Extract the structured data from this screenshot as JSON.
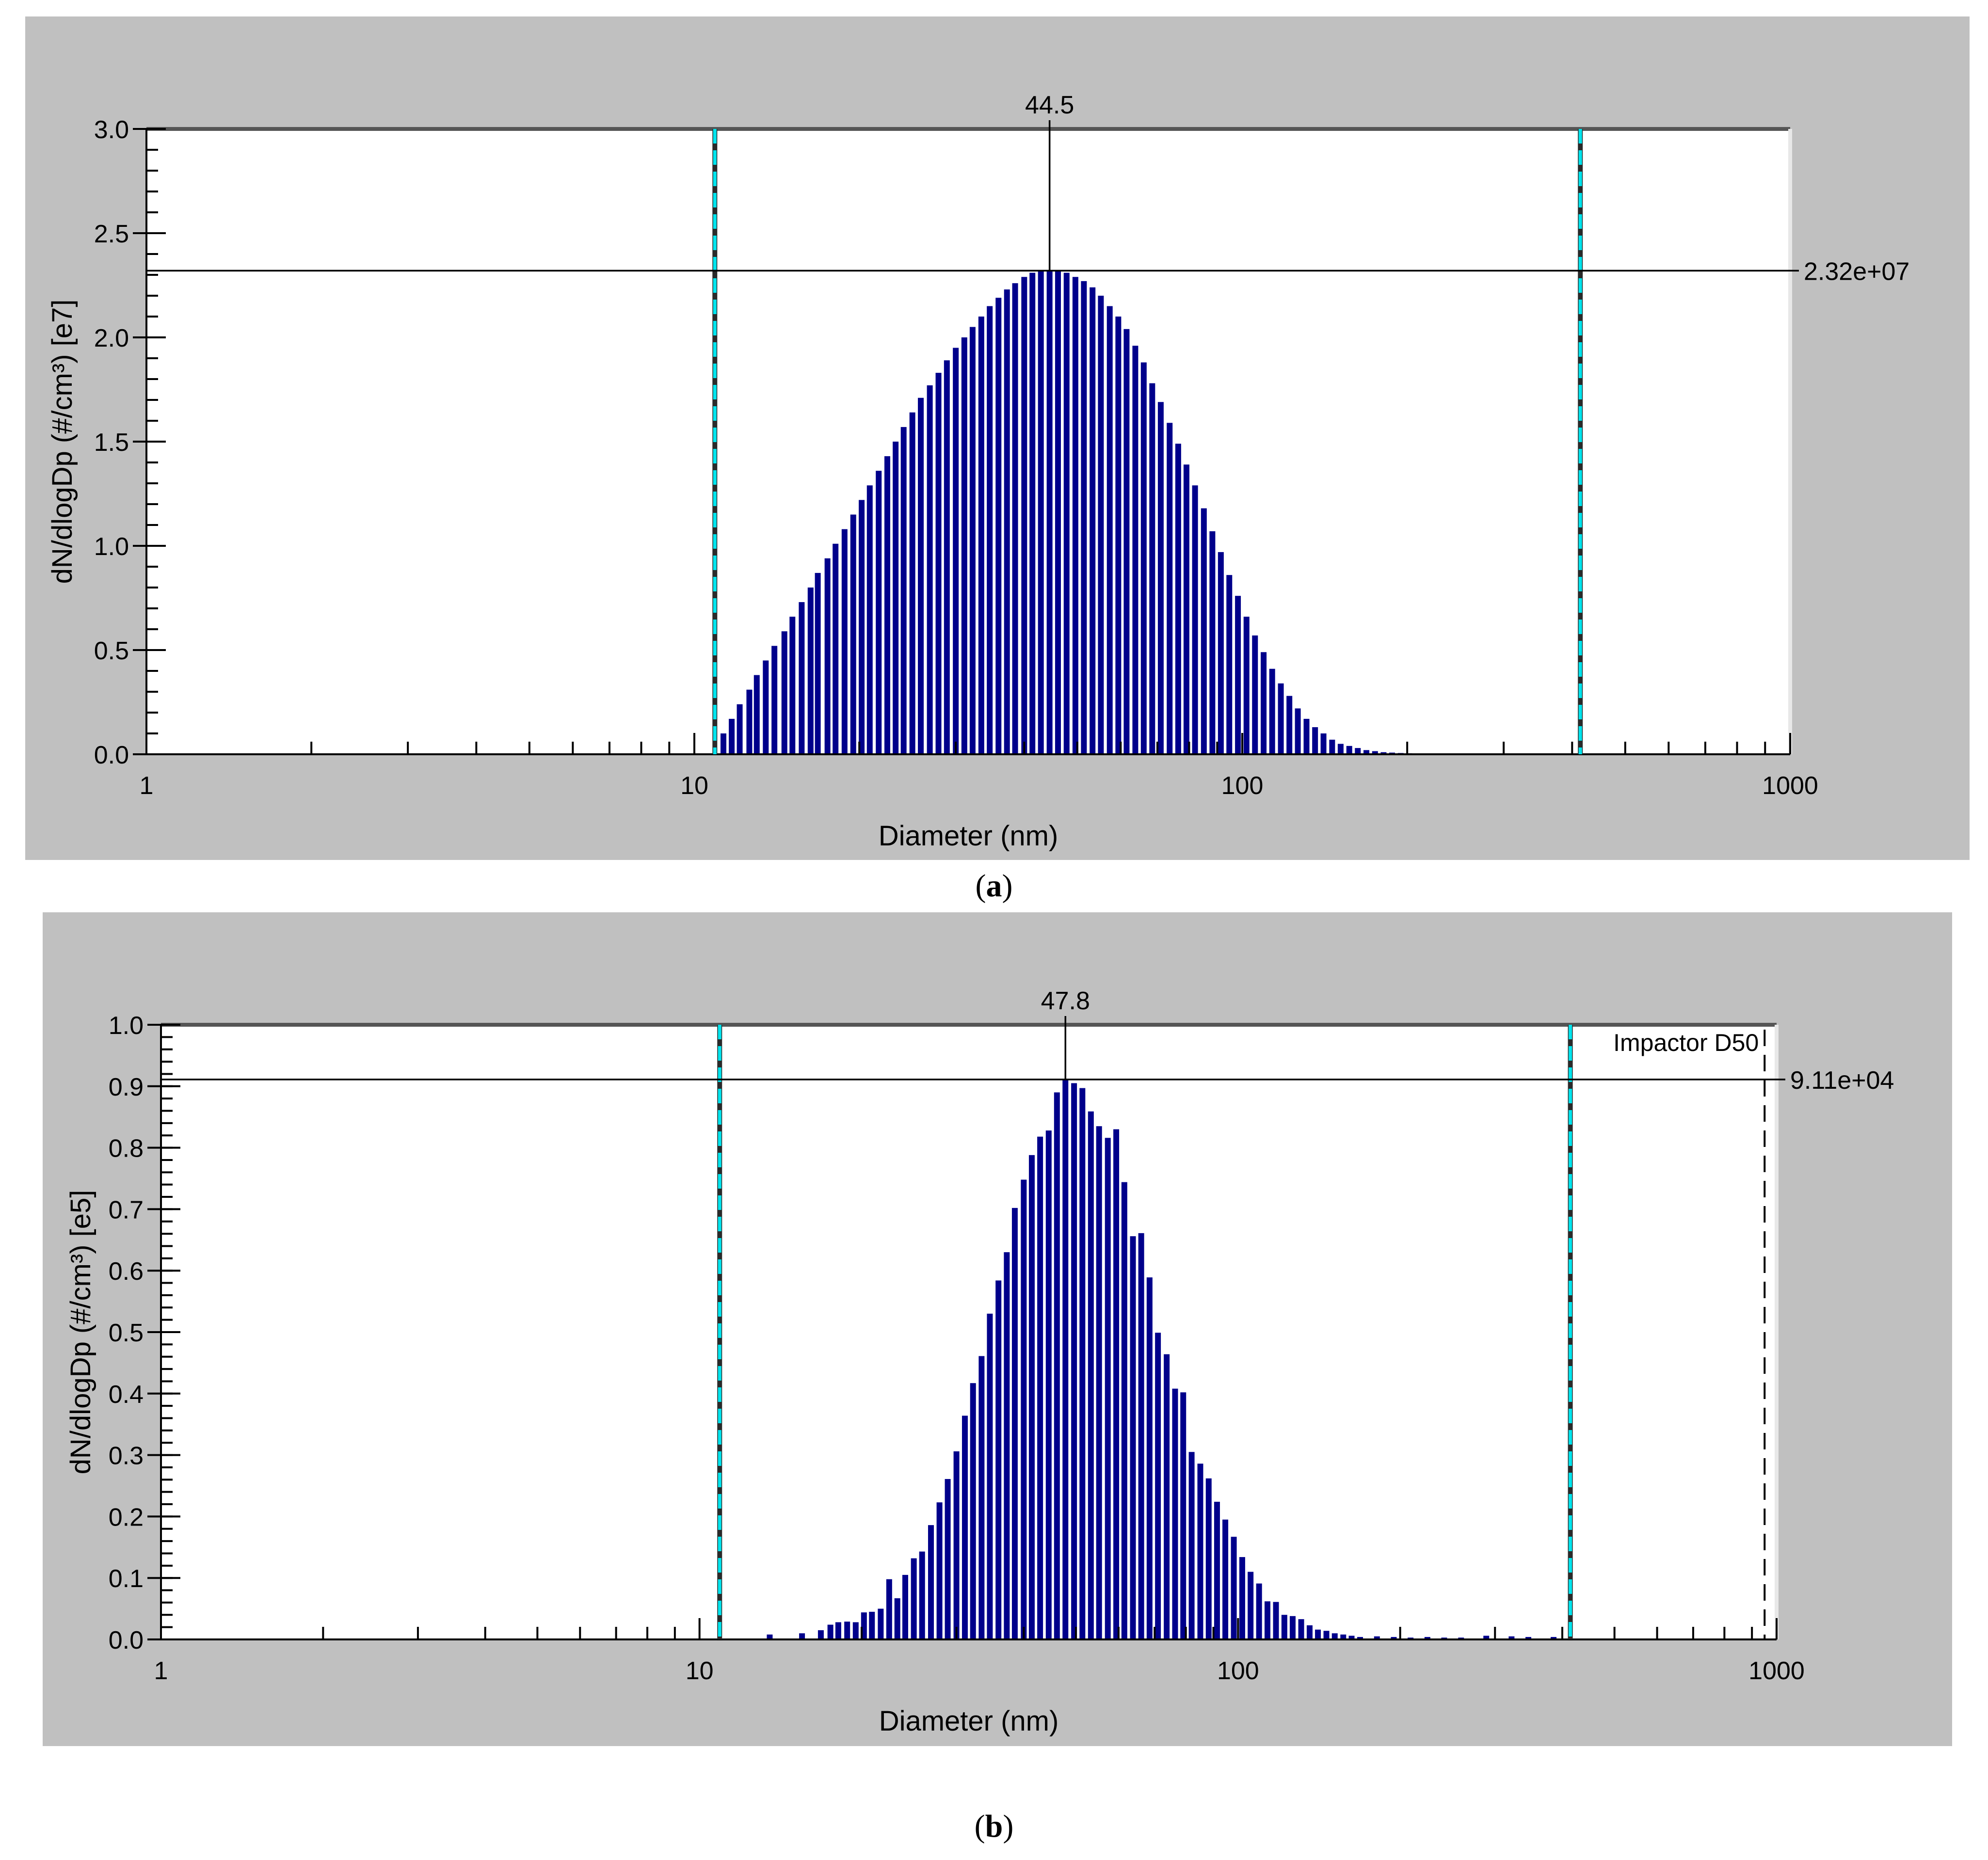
{
  "panels": [
    {
      "label": "a"
    },
    {
      "label": "b"
    }
  ],
  "chart_data": [
    {
      "type": "bar",
      "xlabel": "Diameter (nm)",
      "ylabel": "dN/dlogDp (#/cm³) [e7]",
      "xscale": "log",
      "xlim": [
        1,
        1000
      ],
      "ylim": [
        0,
        3.0
      ],
      "xticks": [
        "1",
        "10",
        "100",
        "1000"
      ],
      "yticks": [
        "0.0",
        "0.5",
        "1.0",
        "1.5",
        "2.0",
        "2.5",
        "3.0"
      ],
      "cursor": {
        "x": 44.5,
        "x_label": "44.5",
        "y": 2.32,
        "y_label": "2.32e+07"
      },
      "bounds": [
        10.9,
        414
      ],
      "bar_color": "#00008b",
      "bound_color": "#00e5ee",
      "x": [
        11.3,
        11.7,
        12.1,
        12.6,
        13.0,
        13.5,
        14.0,
        14.6,
        15.1,
        15.7,
        16.3,
        16.8,
        17.5,
        18.1,
        18.8,
        19.5,
        20.2,
        20.9,
        21.7,
        22.5,
        23.3,
        24.1,
        25.0,
        25.9,
        26.9,
        27.9,
        28.9,
        30.0,
        31.1,
        32.2,
        33.4,
        34.6,
        35.9,
        37.2,
        38.5,
        40.0,
        41.4,
        42.9,
        44.5,
        46.1,
        47.8,
        49.6,
        51.4,
        53.3,
        55.2,
        57.3,
        59.4,
        61.5,
        63.8,
        66.1,
        68.5,
        71.0,
        73.7,
        76.4,
        79.1,
        82.0,
        85.1,
        88.2,
        91.4,
        94.7,
        98.2,
        101.8,
        105.5,
        109.4,
        113.4,
        117.6,
        121.9,
        126.3,
        131.0,
        135.8,
        140.7,
        145.9,
        151.2,
        156.8,
        162.5,
        168.5,
        174.7,
        181.1,
        187.7,
        194.6,
        201.7,
        209.1,
        216.7,
        224.7,
        232.9,
        241.4,
        250.3,
        259.5,
        269.0,
        278.8,
        289.0,
        299.6,
        310.6,
        322.0,
        333.8,
        346.0,
        358.7,
        371.8,
        385.4,
        399.5
      ],
      "values": [
        0.1,
        0.17,
        0.24,
        0.31,
        0.38,
        0.45,
        0.52,
        0.59,
        0.66,
        0.73,
        0.8,
        0.87,
        0.94,
        1.01,
        1.08,
        1.15,
        1.22,
        1.29,
        1.36,
        1.43,
        1.5,
        1.57,
        1.64,
        1.71,
        1.77,
        1.83,
        1.89,
        1.95,
        2.0,
        2.05,
        2.1,
        2.15,
        2.19,
        2.23,
        2.26,
        2.29,
        2.31,
        2.32,
        2.32,
        2.32,
        2.31,
        2.29,
        2.27,
        2.24,
        2.2,
        2.15,
        2.1,
        2.04,
        1.96,
        1.88,
        1.78,
        1.69,
        1.59,
        1.49,
        1.39,
        1.29,
        1.18,
        1.07,
        0.97,
        0.86,
        0.76,
        0.66,
        0.57,
        0.49,
        0.41,
        0.34,
        0.28,
        0.22,
        0.17,
        0.13,
        0.1,
        0.07,
        0.05,
        0.04,
        0.03,
        0.02,
        0.015,
        0.01,
        0.008,
        0.006,
        0.005,
        0.004,
        0.003,
        0.003,
        0.002,
        0.002,
        0.002,
        0.002,
        0.002,
        0.002,
        0.002,
        0.002,
        0.002,
        0.002,
        0.002,
        0.002,
        0.002,
        0.002,
        0.002,
        0.002
      ]
    },
    {
      "type": "bar",
      "xlabel": "Diameter (nm)",
      "ylabel": "dN/dlogDp (#/cm³) [e5]",
      "xscale": "log",
      "xlim": [
        1,
        1000
      ],
      "ylim": [
        0,
        1.0
      ],
      "xticks": [
        "1",
        "10",
        "100",
        "1000"
      ],
      "yticks": [
        "0.0",
        "0.1",
        "0.2",
        "0.3",
        "0.4",
        "0.5",
        "0.6",
        "0.7",
        "0.8",
        "0.9",
        "1.0"
      ],
      "cursor": {
        "x": 47.8,
        "x_label": "47.8",
        "y": 0.911,
        "y_label": "9.11e+04"
      },
      "bounds": [
        10.9,
        414
      ],
      "annotation": {
        "x": 950,
        "label": "Impactor D50"
      },
      "bar_color": "#00008b",
      "bound_color": "#00e5ee",
      "x": [
        13.5,
        15.5,
        16.8,
        17.5,
        18.1,
        18.8,
        19.5,
        20.2,
        20.9,
        21.7,
        22.5,
        23.3,
        24.1,
        25.0,
        25.9,
        26.9,
        27.9,
        28.9,
        30.0,
        31.1,
        32.2,
        33.4,
        34.6,
        35.9,
        37.2,
        38.5,
        40.0,
        41.4,
        42.9,
        44.5,
        46.1,
        47.8,
        49.6,
        51.4,
        53.3,
        55.2,
        57.3,
        59.4,
        61.5,
        63.8,
        66.1,
        68.5,
        71.0,
        73.7,
        76.4,
        79.1,
        82.0,
        85.1,
        88.2,
        91.4,
        94.7,
        98.2,
        101.8,
        105.5,
        109.4,
        113.4,
        117.6,
        121.9,
        126.3,
        131.0,
        135.8,
        140.7,
        145.9,
        151.2,
        156.8,
        162.5,
        168.5,
        181.1,
        194.6,
        209.1,
        224.7,
        241.4,
        259.5,
        289.0,
        322.0,
        346.0,
        385.4
      ],
      "values": [
        0.008,
        0.01,
        0.015,
        0.024,
        0.028,
        0.029,
        0.028,
        0.044,
        0.045,
        0.05,
        0.098,
        0.067,
        0.105,
        0.132,
        0.143,
        0.186,
        0.223,
        0.261,
        0.306,
        0.364,
        0.417,
        0.461,
        0.53,
        0.584,
        0.63,
        0.702,
        0.748,
        0.788,
        0.818,
        0.828,
        0.89,
        0.911,
        0.905,
        0.897,
        0.859,
        0.835,
        0.816,
        0.83,
        0.744,
        0.656,
        0.661,
        0.589,
        0.499,
        0.464,
        0.408,
        0.402,
        0.305,
        0.286,
        0.262,
        0.224,
        0.195,
        0.167,
        0.134,
        0.11,
        0.091,
        0.062,
        0.061,
        0.04,
        0.038,
        0.033,
        0.023,
        0.016,
        0.014,
        0.01,
        0.008,
        0.006,
        0.004,
        0.005,
        0.004,
        0.003,
        0.004,
        0.003,
        0.003,
        0.006,
        0.005,
        0.004,
        0.004
      ]
    }
  ]
}
